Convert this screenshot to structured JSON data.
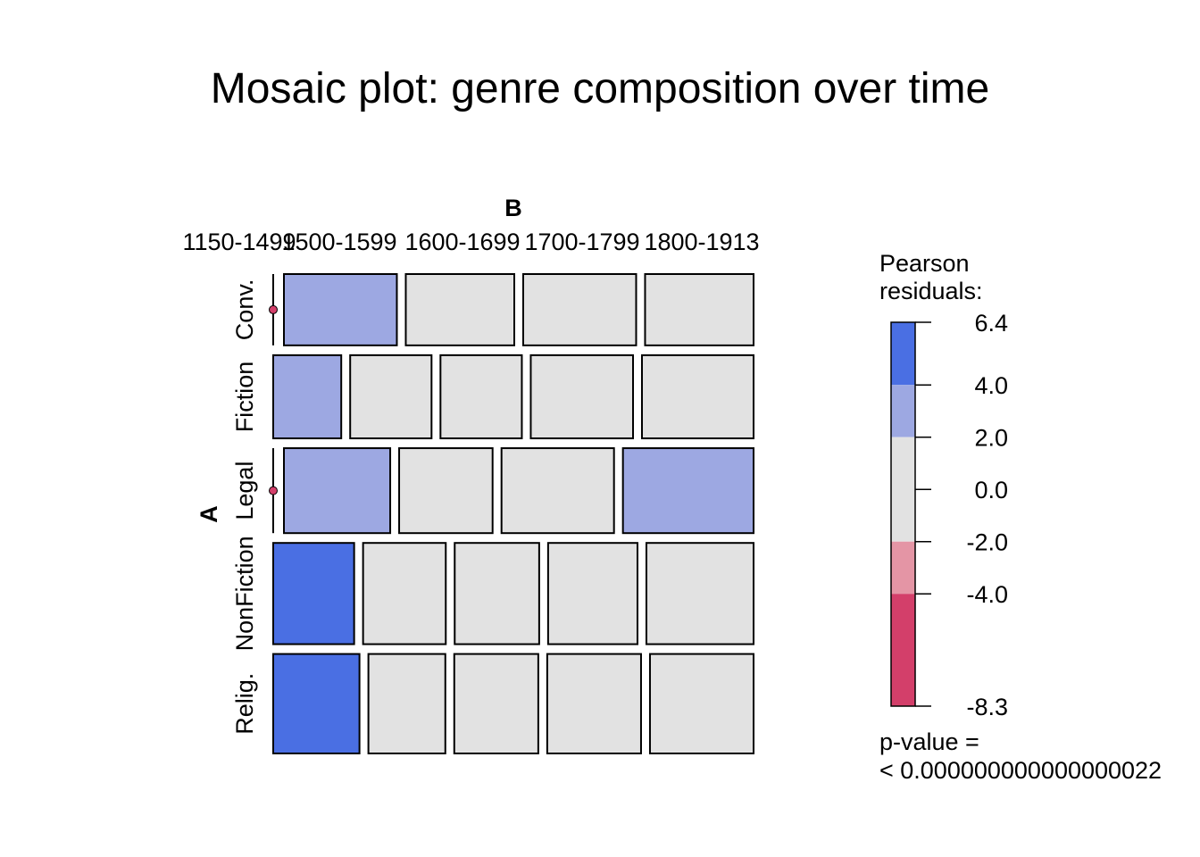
{
  "chart_data": {
    "type": "mosaic",
    "title": "Mosaic plot: genre composition over time",
    "x_variable": "B",
    "y_variable": "A",
    "x_categories": [
      "1150-1499",
      "1500-1599",
      "1600-1699",
      "1700-1799",
      "1800-1913"
    ],
    "y_categories": [
      "Conv.",
      "Fiction",
      "Legal",
      "NonFiction",
      "Relig."
    ],
    "rows": [
      {
        "name": "Conv.",
        "height_share": 0.162,
        "cell_shares": [
          0.0,
          0.255,
          0.245,
          0.255,
          0.245
        ],
        "residual_band": [
          null,
          "2.0-4.0",
          "0.0",
          "0.0",
          "0.0"
        ]
      },
      {
        "name": "Fiction",
        "height_share": 0.189,
        "cell_shares": [
          0.153,
          0.183,
          0.183,
          0.23,
          0.251
        ],
        "residual_band": [
          "2.0-4.0",
          "0.0",
          "0.0",
          "0.0",
          "0.0"
        ]
      },
      {
        "name": "Legal",
        "height_share": 0.193,
        "cell_shares": [
          0.0,
          0.24,
          0.211,
          0.254,
          0.295
        ],
        "residual_band": [
          null,
          "2.0-4.0",
          "0.0",
          "0.0",
          "2.0-4.0"
        ]
      },
      {
        "name": "NonFiction",
        "height_share": 0.23,
        "cell_shares": [
          0.182,
          0.186,
          0.19,
          0.201,
          0.241
        ],
        "residual_band": [
          ">4.0",
          "0.0",
          "0.0",
          "0.0",
          "0.0"
        ]
      },
      {
        "name": "Relig.",
        "height_share": 0.226,
        "cell_shares": [
          0.194,
          0.173,
          0.189,
          0.211,
          0.233
        ],
        "residual_band": [
          ">4.0",
          "0.0",
          "0.0",
          "0.0",
          "0.0"
        ]
      }
    ],
    "column_width_shares": [
      0.191,
      0.214,
      0.197,
      0.184,
      0.214
    ],
    "legend": {
      "title_line1": "Pearson",
      "title_line2": "residuals:",
      "max": 6.4,
      "min": -8.3,
      "ticks": [
        "6.4",
        "4.0",
        "2.0",
        "0.0",
        "-2.0",
        "-4.0",
        "-8.3"
      ],
      "tick_values": [
        6.4,
        4.0,
        2.0,
        0.0,
        -2.0,
        -4.0,
        -8.3
      ],
      "bands": [
        {
          "from": 4.0,
          "to": 6.4,
          "color": "#4a6fe3"
        },
        {
          "from": 2.0,
          "to": 4.0,
          "color": "#9da8e2"
        },
        {
          "from": -2.0,
          "to": 2.0,
          "color": "#e2e2e2"
        },
        {
          "from": -4.0,
          "to": -2.0,
          "color": "#e495a5"
        },
        {
          "from": -8.3,
          "to": -4.0,
          "color": "#d33f6a"
        }
      ],
      "pvalue_line1": "p-value =",
      "pvalue_line2": "< 0.000000000000000022"
    },
    "colors": {
      "strong_positive": "#4a6fe3",
      "positive": "#9da8e2",
      "neutral": "#e2e2e2",
      "zero_cell_dot": "#d33f6a"
    }
  }
}
